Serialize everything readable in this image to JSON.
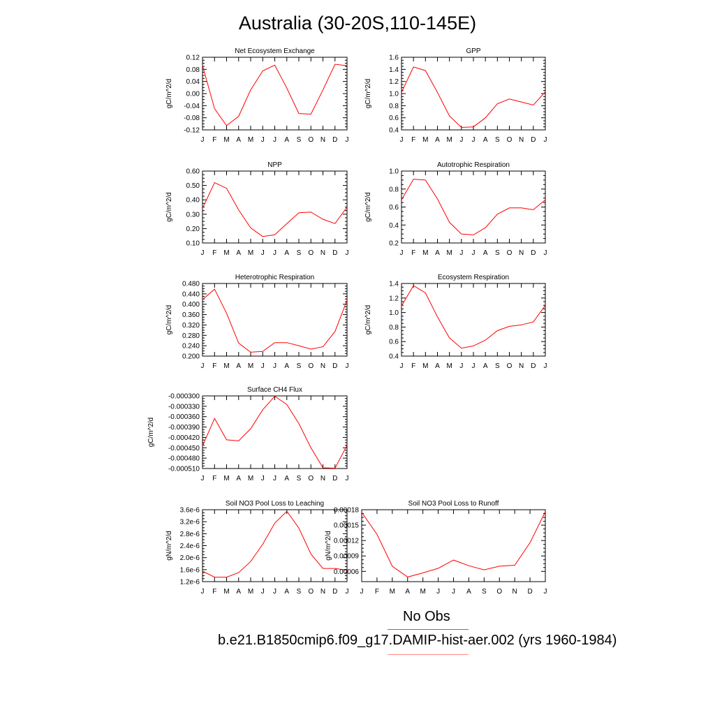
{
  "title": "Australia (30-20S,110-145E)",
  "legend": [
    {
      "label": "No Obs",
      "color": "#6666ee"
    },
    {
      "label": "b.e21.B1850cmip6.f09_g17.DAMIP-hist-aer.002 (yrs 1960-1984)",
      "color": "#ff0000"
    }
  ],
  "line_color": "#ff0000",
  "chart_data": [
    {
      "type": "line",
      "title": "Net Ecosystem Exchange",
      "ylabel": "gC/m^2/d",
      "categories": [
        "J",
        "F",
        "M",
        "A",
        "M",
        "J",
        "J",
        "A",
        "S",
        "O",
        "N",
        "D",
        "J"
      ],
      "ylim": [
        -0.12,
        0.12
      ],
      "yticks": [
        "-0.12",
        "-0.08",
        "-0.04",
        "0.00",
        "0.04",
        "0.08",
        "0.12"
      ],
      "ytick_values": [
        -0.12,
        -0.08,
        -0.04,
        0.0,
        0.04,
        0.08,
        0.12
      ],
      "values": [
        0.093,
        -0.05,
        -0.106,
        -0.075,
        0.012,
        0.075,
        0.094,
        0.018,
        -0.066,
        -0.068,
        0.012,
        0.097,
        0.092
      ]
    },
    {
      "type": "line",
      "title": "GPP",
      "ylabel": "gC/m^2/d",
      "categories": [
        "J",
        "F",
        "M",
        "A",
        "M",
        "J",
        "J",
        "A",
        "S",
        "O",
        "N",
        "D",
        "J"
      ],
      "ylim": [
        0.4,
        1.6
      ],
      "yticks": [
        "0.4",
        "0.6",
        "0.8",
        "1.0",
        "1.2",
        "1.4",
        "1.6"
      ],
      "ytick_values": [
        0.4,
        0.6,
        0.8,
        1.0,
        1.2,
        1.4,
        1.6
      ],
      "values": [
        1.02,
        1.44,
        1.38,
        1.02,
        0.63,
        0.44,
        0.45,
        0.6,
        0.83,
        0.91,
        0.86,
        0.81,
        1.03
      ]
    },
    {
      "type": "line",
      "title": "NPP",
      "ylabel": "gC/m^2/d",
      "categories": [
        "J",
        "F",
        "M",
        "A",
        "M",
        "J",
        "J",
        "A",
        "S",
        "O",
        "N",
        "D",
        "J"
      ],
      "ylim": [
        0.1,
        0.6
      ],
      "yticks": [
        "0.10",
        "0.20",
        "0.30",
        "0.40",
        "0.50",
        "0.60"
      ],
      "ytick_values": [
        0.1,
        0.2,
        0.3,
        0.4,
        0.5,
        0.6
      ],
      "values": [
        0.34,
        0.52,
        0.48,
        0.33,
        0.205,
        0.145,
        0.157,
        0.235,
        0.31,
        0.315,
        0.265,
        0.235,
        0.35
      ]
    },
    {
      "type": "line",
      "title": "Autotrophic Respiration",
      "ylabel": "gC/m^2/d",
      "categories": [
        "J",
        "F",
        "M",
        "A",
        "M",
        "J",
        "J",
        "A",
        "S",
        "O",
        "N",
        "D",
        "J"
      ],
      "ylim": [
        0.2,
        1.0
      ],
      "yticks": [
        "0.2",
        "0.4",
        "0.6",
        "0.8",
        "1.0"
      ],
      "ytick_values": [
        0.2,
        0.4,
        0.6,
        0.8,
        1.0
      ],
      "values": [
        0.68,
        0.91,
        0.9,
        0.69,
        0.43,
        0.3,
        0.29,
        0.37,
        0.52,
        0.59,
        0.59,
        0.57,
        0.68
      ]
    },
    {
      "type": "line",
      "title": "Heterotrophic Respiration",
      "ylabel": "gC/m^2/d",
      "categories": [
        "J",
        "F",
        "M",
        "A",
        "M",
        "J",
        "J",
        "A",
        "S",
        "O",
        "N",
        "D",
        "J"
      ],
      "ylim": [
        0.2,
        0.48
      ],
      "yticks": [
        "0.200",
        "0.240",
        "0.280",
        "0.320",
        "0.360",
        "0.400",
        "0.440",
        "0.480"
      ],
      "ytick_values": [
        0.2,
        0.24,
        0.28,
        0.32,
        0.36,
        0.4,
        0.44,
        0.48
      ],
      "values": [
        0.418,
        0.458,
        0.365,
        0.25,
        0.215,
        0.218,
        0.252,
        0.252,
        0.24,
        0.227,
        0.236,
        0.295,
        0.415
      ]
    },
    {
      "type": "line",
      "title": "Ecosystem Respiration",
      "ylabel": "gC/m^2/d",
      "categories": [
        "J",
        "F",
        "M",
        "A",
        "M",
        "J",
        "J",
        "A",
        "S",
        "O",
        "N",
        "D",
        "J"
      ],
      "ylim": [
        0.4,
        1.4
      ],
      "yticks": [
        "0.4",
        "0.6",
        "0.8",
        "1.0",
        "1.2",
        "1.4"
      ],
      "ytick_values": [
        0.4,
        0.6,
        0.8,
        1.0,
        1.2,
        1.4
      ],
      "values": [
        1.09,
        1.37,
        1.27,
        0.94,
        0.65,
        0.51,
        0.54,
        0.62,
        0.75,
        0.81,
        0.83,
        0.87,
        1.1
      ]
    },
    {
      "type": "line",
      "title": "Surface CH4 Flux",
      "ylabel": "gC/m^2/d",
      "categories": [
        "J",
        "F",
        "M",
        "A",
        "M",
        "J",
        "J",
        "A",
        "S",
        "O",
        "N",
        "D",
        "J"
      ],
      "ylim": [
        -0.00051,
        -0.0003
      ],
      "yticks": [
        "-0.000510",
        "-0.000480",
        "-0.000450",
        "-0.000420",
        "-0.000390",
        "-0.000360",
        "-0.000330",
        "-0.000300"
      ],
      "ytick_values": [
        -0.00051,
        -0.00048,
        -0.00045,
        -0.00042,
        -0.00039,
        -0.00036,
        -0.00033,
        -0.0003
      ],
      "values": [
        -0.000445,
        -0.000365,
        -0.000427,
        -0.00043,
        -0.000395,
        -0.00034,
        -0.000301,
        -0.000325,
        -0.00038,
        -0.00045,
        -0.000508,
        -0.000509,
        -0.000443
      ]
    },
    {
      "type": "line",
      "title": "Soil NO3 Pool Loss to Leaching",
      "ylabel": "gN/m^2/d",
      "categories": [
        "J",
        "F",
        "M",
        "A",
        "M",
        "J",
        "J",
        "A",
        "S",
        "O",
        "N",
        "D",
        "J"
      ],
      "ylim": [
        1.2e-06,
        3.6e-06
      ],
      "yticks": [
        "1.2e-6",
        "1.6e-6",
        "2.0e-6",
        "2.4e-6",
        "2.8e-6",
        "3.2e-6",
        "3.6e-6"
      ],
      "ytick_values": [
        1.2e-06,
        1.6e-06,
        2e-06,
        2.4e-06,
        2.8e-06,
        3.2e-06,
        3.6e-06
      ],
      "values": [
        1.55e-06,
        1.35e-06,
        1.35e-06,
        1.5e-06,
        1.87e-06,
        2.45e-06,
        3.15e-06,
        3.55e-06,
        2.99e-06,
        2.12e-06,
        1.64e-06,
        1.64e-06,
        1.58e-06
      ]
    },
    {
      "type": "line",
      "title": "Soil NO3 Pool Loss to Runoff",
      "ylabel": "gN/m^2/d",
      "categories": [
        "J",
        "F",
        "M",
        "A",
        "M",
        "J",
        "J",
        "A",
        "S",
        "O",
        "N",
        "D",
        "J"
      ],
      "ylim": [
        4e-05,
        0.00018
      ],
      "yticks": [
        "0.00006",
        "0.00009",
        "0.00012",
        "0.00015",
        "0.00018"
      ],
      "ytick_values": [
        6e-05,
        9e-05,
        0.00012,
        0.00015,
        0.00018
      ],
      "values": [
        0.000175,
        0.000132,
        7e-05,
        4.9e-05,
        5.7e-05,
        6.6e-05,
        8.2e-05,
        7.1e-05,
        6.3e-05,
        7e-05,
        7.2e-05,
        0.000116,
        0.000176
      ]
    }
  ]
}
